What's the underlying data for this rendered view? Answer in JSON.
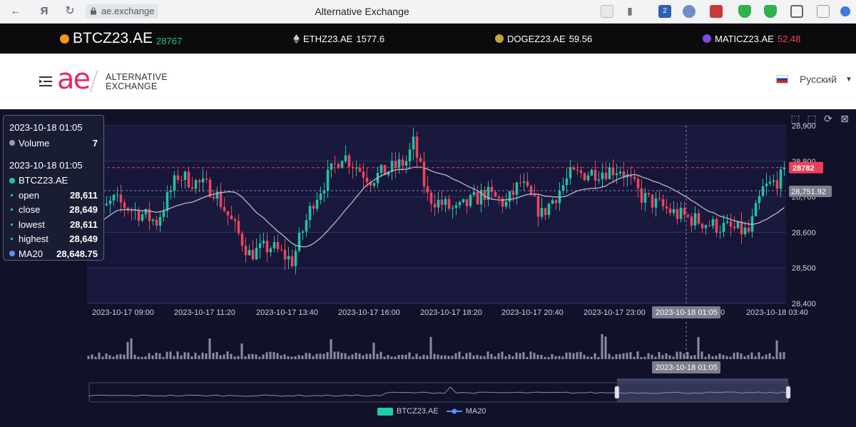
{
  "browser": {
    "address": "ae.exchange",
    "tab_title": "Alternative Exchange",
    "ext_badge": "2"
  },
  "ticker": {
    "items": [
      {
        "symbol": "BTCZ23.AE",
        "price": "28767",
        "icon": "bitcoin-icon",
        "icon_color": "#f7931a",
        "price_color": "#27c08a"
      },
      {
        "symbol": "ETHZ23.AE",
        "price": "1577.6",
        "icon": "ethereum-icon",
        "icon_color": "#c9c9c9",
        "price_color": "#ffffff"
      },
      {
        "symbol": "DOGEZ23.AE",
        "price": "59.56",
        "icon": "dogecoin-icon",
        "icon_color": "#c2a633",
        "price_color": "#ffffff"
      },
      {
        "symbol": "MATICZ23.AE",
        "price": "52.48",
        "icon": "polygon-icon",
        "icon_color": "#8247e5",
        "price_color": "#f0435c"
      }
    ]
  },
  "header": {
    "logo": "ae",
    "logo_line1": "ALTERNATIVE",
    "logo_line2": "EXCHANGE",
    "language": "Русский"
  },
  "tooltip": {
    "volume_date": "2023-10-18 01:05",
    "volume_label": "Volume",
    "volume_value": "7",
    "candle_date": "2023-10-18 01:05",
    "series_name": "BTCZ23.AE",
    "open_label": "open",
    "open": "28,611",
    "close_label": "close",
    "close": "28,649",
    "lowest_label": "lowest",
    "lowest": "28,611",
    "highest_label": "highest",
    "highest": "28,649",
    "ma_label": "MA20",
    "ma": "28,648.75"
  },
  "chart_data": {
    "type": "candlestick",
    "series": [
      {
        "name": "BTCZ23.AE"
      },
      {
        "name": "MA20"
      }
    ],
    "x_ticks": [
      "2023-10-17 09:00",
      "2023-10-17 11:20",
      "2023-10-17 13:40",
      "2023-10-17 16:00",
      "2023-10-17 18:20",
      "2023-10-17 20:40",
      "2023-10-17 23:00",
      "0",
      "2023-10-18 03:40"
    ],
    "y_ticks": [
      28900,
      28800,
      28700,
      28600,
      28500,
      28400
    ],
    "y_tick_labels": [
      "28,900",
      "28,800",
      "28,700",
      "28,600",
      "28,500",
      "28,400"
    ],
    "ylim": [
      28400,
      28900
    ],
    "last_price": "28782",
    "crosshair_price": "28,751.92",
    "crosshair_date": "2023-10-18 01:05",
    "zoom_range": [
      0.755,
      1.0
    ],
    "colors": {
      "up": "#22c3a0",
      "down": "#f0435c",
      "ma": "#b8b8cc",
      "volume": "#8c8ca0",
      "last_price": "#ef3e55"
    }
  },
  "legend": {
    "candles": "BTCZ23.AE",
    "ma": "MA20"
  }
}
